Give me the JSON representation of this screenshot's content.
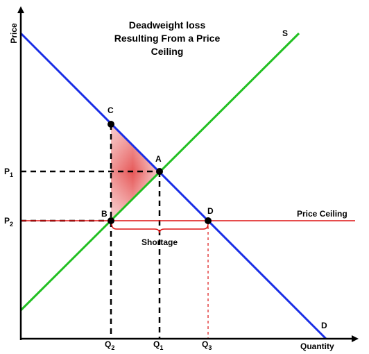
{
  "title_lines": [
    "Deadweight loss",
    "Resulting From a Price",
    "Ceiling"
  ],
  "axes": {
    "y_label": "Price",
    "x_label": "Quantity"
  },
  "curves": {
    "supply_label": "S",
    "demand_label": "D"
  },
  "points": {
    "a": "A",
    "b": "B",
    "c": "C",
    "d": "D"
  },
  "prices": {
    "p1": "P",
    "p1_sub": "1",
    "p2": "P",
    "p2_sub": "2"
  },
  "quantities": {
    "q1": "Q",
    "q1_sub": "1",
    "q2": "Q",
    "q2_sub": "2",
    "q3": "Q",
    "q3_sub": "3"
  },
  "price_ceiling_label": "Price Ceiling",
  "shortage_label": "Shortage",
  "colors": {
    "supply": "#22c022",
    "demand": "#1a2ee6",
    "ceiling": "#dd1111",
    "deadweight": "#e85a5a"
  }
}
